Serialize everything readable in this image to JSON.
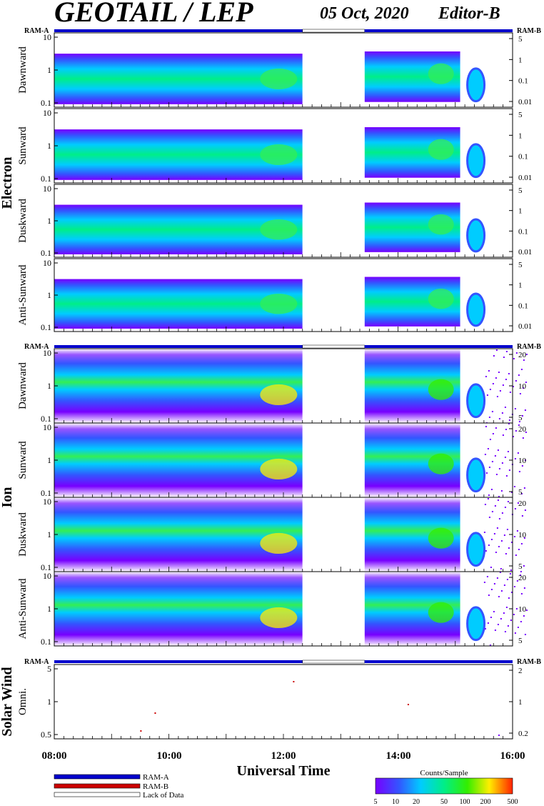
{
  "header": {
    "instrument": "GEOTAIL / LEP",
    "date": "05 Oct, 2020",
    "editor": "Editor-B"
  },
  "colors": {
    "ram_a": "#0000cc",
    "ram_b": "#cc0000",
    "background": "#ffffff"
  },
  "ram_labels": {
    "a": "RAM-A",
    "b": "RAM-B"
  },
  "sections": [
    {
      "name": "Electron",
      "panels": [
        "Dawnward",
        "Sunward",
        "Duskward",
        "Anti-Sunward"
      ],
      "left_ticks": [
        "10",
        "1",
        "0.1"
      ],
      "right_ticks": [
        "5",
        "1",
        "0.1",
        "0.01"
      ]
    },
    {
      "name": "Ion",
      "panels": [
        "Dawnward",
        "Sunward",
        "Duskward",
        "Anti-Sunward"
      ],
      "left_ticks": [
        "10",
        "1",
        "0.1"
      ],
      "right_ticks": [
        "20",
        "10",
        "5"
      ]
    },
    {
      "name": "Solar Wind",
      "panels": [
        "Omni."
      ],
      "left_ticks": [
        "5",
        "1",
        "0.5"
      ],
      "right_ticks": [
        "2",
        "1",
        "0.2"
      ]
    }
  ],
  "x_axis": {
    "label": "Universal Time",
    "ticks": [
      "08:00",
      "10:00",
      "12:00",
      "14:00",
      "16:00"
    ]
  },
  "legend": {
    "items": [
      {
        "label": "RAM-A",
        "color": "#0000cc"
      },
      {
        "label": "RAM-B",
        "color": "#cc0000"
      },
      {
        "label": "Lack of Data",
        "color": "#ffffff"
      }
    ]
  },
  "colorbar": {
    "title": "Counts/Sample",
    "ticks": [
      "5",
      "10",
      "20",
      "50",
      "100",
      "200",
      "500"
    ]
  },
  "chart_data": {
    "type": "heatmap",
    "x_range_ut": [
      "08:00",
      "16:00"
    ],
    "data_gap_ut": [
      "12:20",
      "13:25"
    ],
    "ram_a_status": [
      {
        "from": "08:00",
        "to": "12:20",
        "state": "RAM-A"
      },
      {
        "from": "12:20",
        "to": "13:25",
        "state": "Lack of Data"
      },
      {
        "from": "13:25",
        "to": "16:00",
        "state": "RAM-A"
      }
    ],
    "color_scale": [
      "#7700ff",
      "#3355ff",
      "#00ccff",
      "#00ee88",
      "#33ee00",
      "#ffee00",
      "#ff2200"
    ],
    "color_scale_range_counts": [
      5,
      500
    ]
  }
}
